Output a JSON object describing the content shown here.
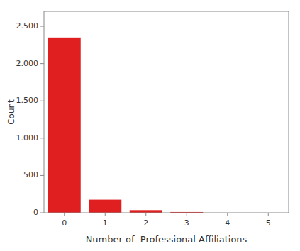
{
  "chart_data": {
    "type": "bar",
    "categories": [
      0,
      1,
      2,
      3,
      4,
      5
    ],
    "values": [
      2350,
      175,
      35,
      10,
      0,
      0
    ],
    "color": "#e02020",
    "xlabel": "Number of  Professional Affiliations",
    "ylabel": "Count",
    "ylim": [
      0,
      2700
    ],
    "yticks": [
      0,
      500,
      {
        "value": 1000,
        "label": "1.000"
      },
      {
        "value": 1500,
        "label": "1.500"
      },
      {
        "value": 2000,
        "label": "2.000"
      },
      {
        "value": 2500,
        "label": "2.500"
      }
    ],
    "grid": false
  }
}
